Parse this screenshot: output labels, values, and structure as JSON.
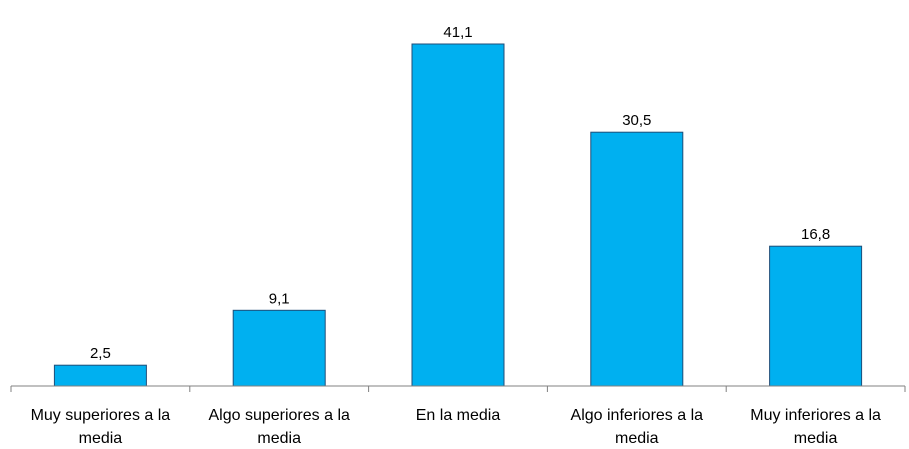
{
  "chart_data": {
    "type": "bar",
    "categories": [
      [
        "Muy superiores a la",
        "media"
      ],
      [
        "Algo superiores a la",
        "media"
      ],
      [
        "En la media"
      ],
      [
        "Algo inferiores a la",
        "media"
      ],
      [
        "Muy inferiores a la",
        "media"
      ]
    ],
    "values": [
      2.5,
      9.1,
      41.1,
      30.5,
      16.8
    ],
    "data_labels": [
      "2,5",
      "9,1",
      "41,1",
      "30,5",
      "16,8"
    ],
    "ylim": [
      0,
      41.1
    ],
    "grid": false,
    "legend": "none",
    "colors": {
      "bar_fill": "#00B0F0",
      "bar_stroke": "#1F4E79",
      "axis": "#808080",
      "text": "#000000"
    }
  }
}
